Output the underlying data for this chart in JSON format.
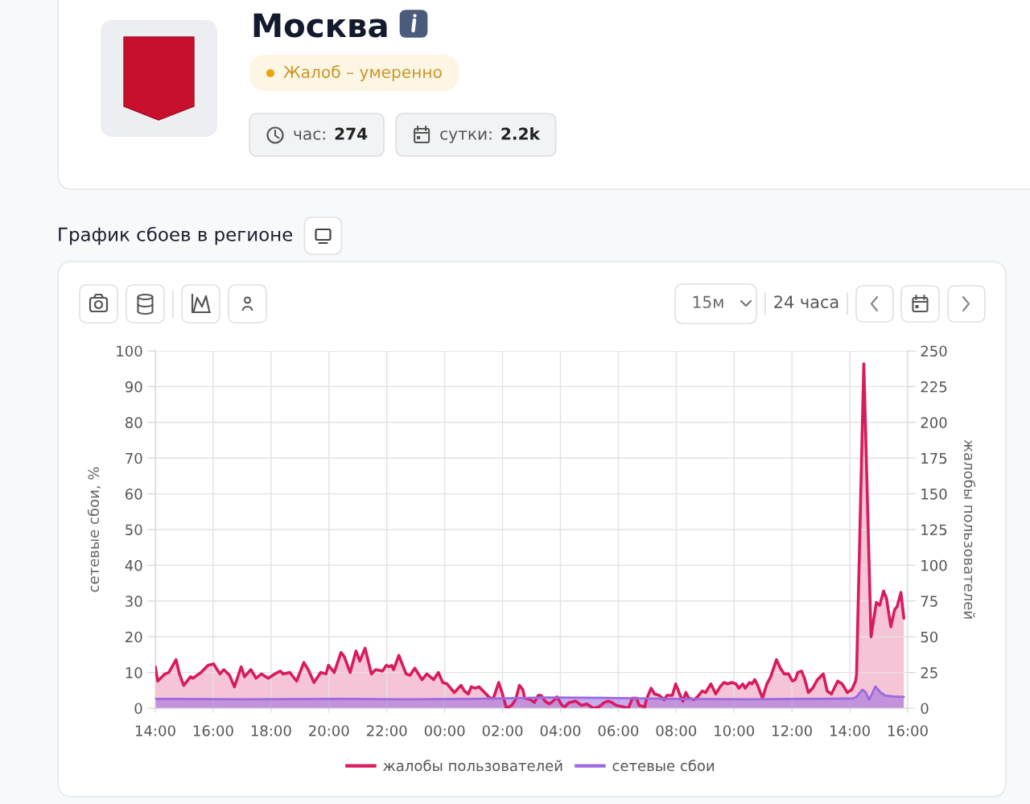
{
  "chart_data": {
    "type": "area",
    "title": "Москва",
    "subtitle": "График сбоев в регионе",
    "annotations": [
      "Жалоб – умеренно",
      "час: 274",
      "сутки: 2.2k",
      "15м",
      "24 часа"
    ],
    "ylabel": "сетевые сбои, %",
    "y2label": "жалобы пользователей",
    "xlim": [
      "2000-01-01T14:00",
      "2000-01-02T16:00"
    ],
    "xticks": [
      {
        "value": "2000-01-01T14:00",
        "label": "14:00"
      },
      {
        "value": "2000-01-01T16:00",
        "label": "16:00"
      },
      {
        "value": "2000-01-01T18:00",
        "label": "18:00"
      },
      {
        "value": "2000-01-01T20:00",
        "label": "20:00"
      },
      {
        "value": "2000-01-01T22:00",
        "label": "22:00"
      },
      {
        "value": "2000-01-02T00:00",
        "label": "00:00"
      },
      {
        "value": "2000-01-02T02:00",
        "label": "02:00"
      },
      {
        "value": "2000-01-02T04:00",
        "label": "04:00"
      },
      {
        "value": "2000-01-02T06:00",
        "label": "06:00"
      },
      {
        "value": "2000-01-02T08:00",
        "label": "08:00"
      },
      {
        "value": "2000-01-02T10:00",
        "label": "10:00"
      },
      {
        "value": "2000-01-02T12:00",
        "label": "12:00"
      },
      {
        "value": "2000-01-02T14:00",
        "label": "14:00"
      },
      {
        "value": "2000-01-02T16:00",
        "label": "16:00"
      }
    ],
    "ylim": [
      0,
      100
    ],
    "yticks": [
      0,
      10,
      20,
      30,
      40,
      50,
      60,
      70,
      80,
      90,
      100
    ],
    "y2lim": [
      0,
      250
    ],
    "y2ticks": [
      0,
      25,
      50,
      75,
      100,
      125,
      150,
      175,
      200,
      225,
      250
    ],
    "grid": true,
    "legend": "bottom",
    "series": [
      {
        "name": "жалобы пользователей",
        "color": "#d81b60",
        "axis": "y2",
        "x": [
          "2000-01-01T14:00",
          "2000-01-01T14:05",
          "2000-01-01T14:20",
          "2000-01-01T14:28",
          "2000-01-01T14:43",
          "2000-01-01T14:50",
          "2000-01-01T14:59",
          "2000-01-01T15:13",
          "2000-01-01T15:18",
          "2000-01-01T15:35",
          "2000-01-01T15:49",
          "2000-01-01T16:01",
          "2000-01-01T16:14",
          "2000-01-01T16:22",
          "2000-01-01T16:34",
          "2000-01-01T16:44",
          "2000-01-01T16:58",
          "2000-01-01T17:05",
          "2000-01-01T17:18",
          "2000-01-01T17:29",
          "2000-01-01T17:40",
          "2000-01-01T17:54",
          "2000-01-01T18:08",
          "2000-01-01T18:19",
          "2000-01-01T18:25",
          "2000-01-01T18:39",
          "2000-01-01T18:53",
          "2000-01-01T19:08",
          "2000-01-01T19:17",
          "2000-01-01T19:29",
          "2000-01-01T19:43",
          "2000-01-01T19:54",
          "2000-01-01T19:59",
          "2000-01-01T20:11",
          "2000-01-01T20:25",
          "2000-01-01T20:32",
          "2000-01-01T20:44",
          "2000-01-01T20:56",
          "2000-01-01T21:04",
          "2000-01-01T21:15",
          "2000-01-01T21:28",
          "2000-01-01T21:37",
          "2000-01-01T21:51",
          "2000-01-01T21:59",
          "2000-01-01T22:05",
          "2000-01-01T22:10",
          "2000-01-01T22:14",
          "2000-01-01T22:25",
          "2000-01-01T22:40",
          "2000-01-01T22:48",
          "2000-01-01T22:58",
          "2000-01-01T23:13",
          "2000-01-01T23:23",
          "2000-01-01T23:37",
          "2000-01-01T23:47",
          "2000-01-01T23:56",
          "2000-01-02T00:05",
          "2000-01-02T00:20",
          "2000-01-02T00:34",
          "2000-01-02T00:41",
          "2000-01-02T00:49",
          "2000-01-02T00:55",
          "2000-01-02T01:03",
          "2000-01-02T01:11",
          "2000-01-02T01:23",
          "2000-01-02T01:34",
          "2000-01-02T01:41",
          "2000-01-02T01:52",
          "2000-01-02T01:59",
          "2000-01-02T02:08",
          "2000-01-02T02:19",
          "2000-01-02T02:27",
          "2000-01-02T02:35",
          "2000-01-02T02:42",
          "2000-01-02T02:46",
          "2000-01-02T02:58",
          "2000-01-02T03:06",
          "2000-01-02T03:14",
          "2000-01-02T03:20",
          "2000-01-02T03:28",
          "2000-01-02T03:37",
          "2000-01-02T03:45",
          "2000-01-02T03:53",
          "2000-01-02T04:03",
          "2000-01-02T04:09",
          "2000-01-02T04:18",
          "2000-01-02T04:32",
          "2000-01-02T04:43",
          "2000-01-02T04:55",
          "2000-01-02T05:08",
          "2000-01-02T05:20",
          "2000-01-02T05:31",
          "2000-01-02T05:39",
          "2000-01-02T05:47",
          "2000-01-02T05:56",
          "2000-01-02T06:10",
          "2000-01-02T06:21",
          "2000-01-02T06:29",
          "2000-01-02T06:38",
          "2000-01-02T06:43",
          "2000-01-02T06:55",
          "2000-01-02T06:58",
          "2000-01-02T07:08",
          "2000-01-02T07:15",
          "2000-01-02T07:25",
          "2000-01-02T07:35",
          "2000-01-02T07:41",
          "2000-01-02T07:52",
          "2000-01-02T07:59",
          "2000-01-02T08:07",
          "2000-01-02T08:14",
          "2000-01-02T08:20",
          "2000-01-02T08:26",
          "2000-01-02T08:37",
          "2000-01-02T08:44",
          "2000-01-02T08:54",
          "2000-01-02T09:01",
          "2000-01-02T09:12",
          "2000-01-02T09:22",
          "2000-01-02T09:31",
          "2000-01-02T09:39",
          "2000-01-02T09:47",
          "2000-01-02T09:55",
          "2000-01-02T10:04",
          "2000-01-02T10:10",
          "2000-01-02T10:18",
          "2000-01-02T10:23",
          "2000-01-02T10:32",
          "2000-01-02T10:37",
          "2000-01-02T10:43",
          "2000-01-02T10:49",
          "2000-01-02T10:59",
          "2000-01-02T11:08",
          "2000-01-02T11:16",
          "2000-01-02T11:28",
          "2000-01-02T11:36",
          "2000-01-02T11:44",
          "2000-01-02T11:53",
          "2000-01-02T12:01",
          "2000-01-02T12:07",
          "2000-01-02T12:12",
          "2000-01-02T12:20",
          "2000-01-02T12:26",
          "2000-01-02T12:34",
          "2000-01-02T12:43",
          "2000-01-02T12:53",
          "2000-01-02T13:05",
          "2000-01-02T13:13",
          "2000-01-02T13:22",
          "2000-01-02T13:35",
          "2000-01-02T13:44",
          "2000-01-02T13:55",
          "2000-01-02T14:04",
          "2000-01-02T14:12",
          "2000-01-02T14:14",
          "2000-01-02T14:29",
          "2000-01-02T14:44",
          "2000-01-02T14:55",
          "2000-01-02T15:02",
          "2000-01-02T15:10",
          "2000-01-02T15:16",
          "2000-01-02T15:25",
          "2000-01-02T15:33",
          "2000-01-02T15:38",
          "2000-01-02T15:46",
          "2000-01-02T15:52"
        ],
        "values": [
          29,
          19,
          24,
          25,
          34,
          24,
          16,
          22,
          21,
          25,
          30,
          31,
          24,
          27,
          23,
          15,
          29,
          22,
          27,
          21,
          24,
          21,
          24,
          26,
          24,
          25,
          19,
          32,
          27,
          18,
          25,
          24,
          30,
          25,
          39,
          36,
          25,
          40,
          33,
          42,
          24,
          27,
          26,
          30,
          29,
          30,
          27,
          37,
          24,
          23,
          28,
          20,
          24,
          20,
          25,
          18,
          17,
          11,
          16,
          12,
          10,
          15,
          14,
          15,
          11,
          7,
          7,
          18,
          11,
          0,
          2,
          6,
          16,
          13,
          7,
          6,
          4,
          9,
          9,
          5,
          3,
          5,
          8,
          2,
          1,
          4,
          5,
          2,
          3,
          0,
          1,
          4,
          5,
          4,
          2,
          1,
          0,
          7,
          7,
          2,
          1,
          6,
          14,
          10,
          9,
          6,
          9,
          9,
          17,
          10,
          5,
          11,
          7,
          6,
          8,
          12,
          11,
          17,
          10,
          15,
          18,
          17,
          18,
          17,
          14,
          17,
          14,
          18,
          17,
          20,
          16,
          7,
          17,
          22,
          34,
          28,
          24,
          24,
          19,
          20,
          25,
          26,
          21,
          11,
          14,
          20,
          24,
          12,
          10,
          19,
          17,
          11,
          13,
          19,
          24,
          241,
          50,
          74,
          72,
          82,
          77,
          57,
          69,
          71,
          81,
          63
        ]
      },
      {
        "name": "сетевые сбои",
        "color": "#9b6ae0",
        "axis": "y",
        "x": [
          "2000-01-01T14:00",
          "2000-01-01T17:00",
          "2000-01-01T20:30",
          "2000-01-01T22:30",
          "2000-01-02T01:00",
          "2000-01-02T02:12",
          "2000-01-02T03:30",
          "2000-01-02T05:30",
          "2000-01-02T06:30",
          "2000-01-02T08:00",
          "2000-01-02T10:30",
          "2000-01-02T12:30",
          "2000-01-02T13:48",
          "2000-01-02T14:06",
          "2000-01-02T14:14",
          "2000-01-02T14:26",
          "2000-01-02T14:33",
          "2000-01-02T14:40",
          "2000-01-02T14:46",
          "2000-01-02T14:53",
          "2000-01-02T15:03",
          "2000-01-02T15:13",
          "2000-01-02T15:30",
          "2000-01-02T15:49",
          "2000-01-02T15:52"
        ],
        "values": [
          2.6,
          2.5,
          2.6,
          2.5,
          2.6,
          2.8,
          3.0,
          2.9,
          2.8,
          2.6,
          2.5,
          2.6,
          2.7,
          2.7,
          3.2,
          5.2,
          4.5,
          2.4,
          4.0,
          6.1,
          4.5,
          3.6,
          3.3,
          3.2,
          3.2
        ]
      }
    ]
  }
}
